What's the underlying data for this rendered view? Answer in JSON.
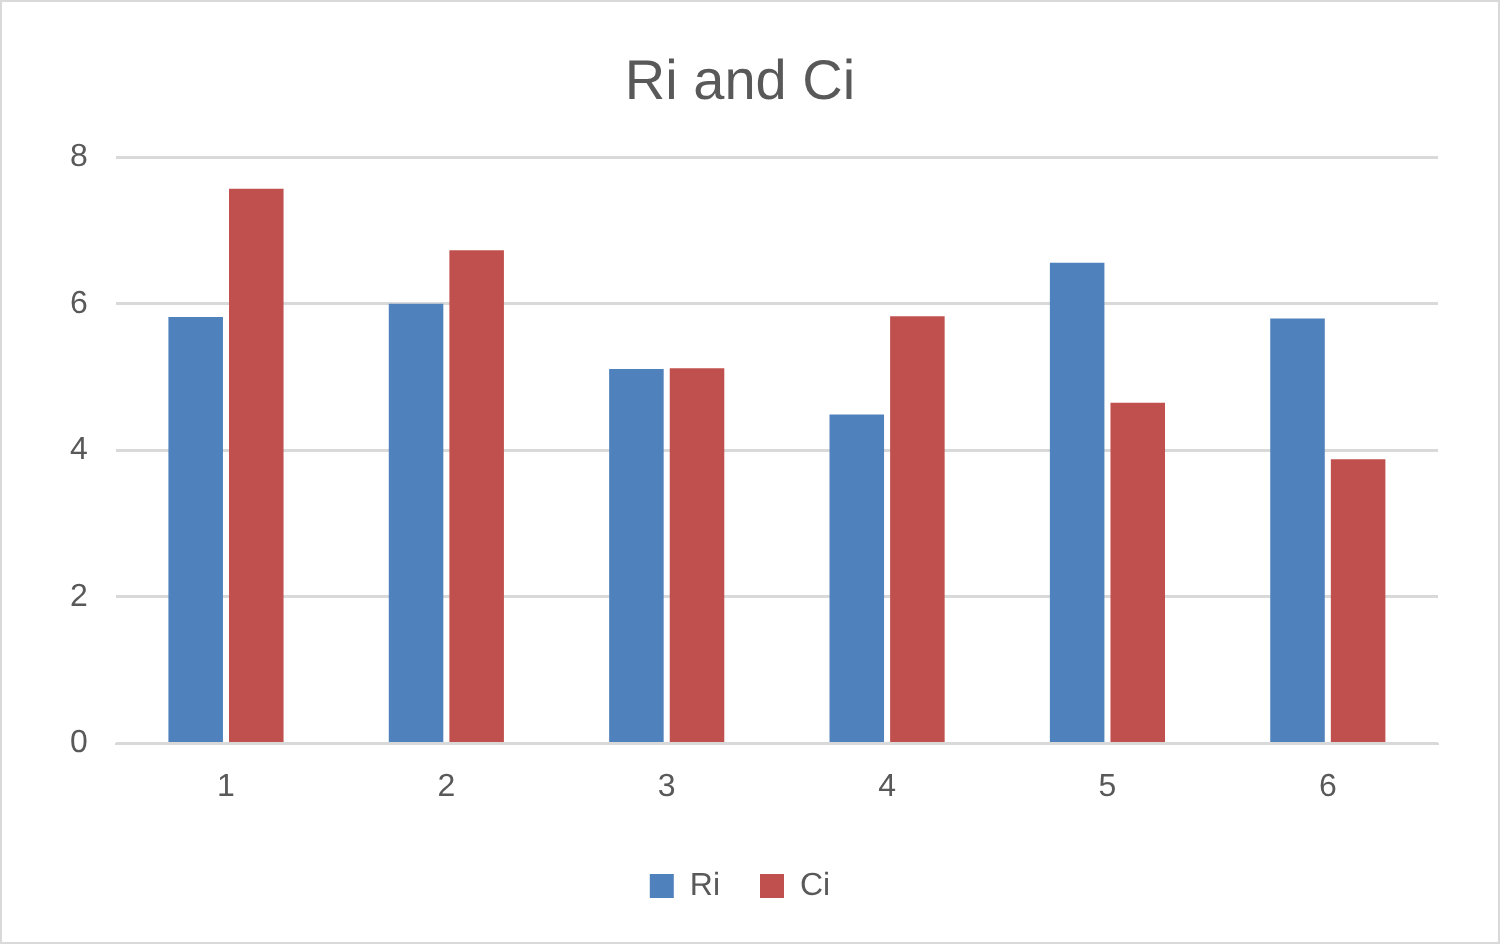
{
  "chart_data": {
    "type": "bar",
    "title": "Ri and Ci",
    "categories": [
      "1",
      "2",
      "3",
      "4",
      "5",
      "6"
    ],
    "series": [
      {
        "name": "Ri",
        "color": "#4f81bd",
        "values": [
          5.82,
          6.0,
          5.11,
          4.49,
          6.56,
          5.8
        ]
      },
      {
        "name": "Ci",
        "color": "#c0504d",
        "values": [
          7.57,
          6.73,
          5.12,
          5.83,
          4.65,
          3.88
        ]
      }
    ],
    "ylim": [
      0,
      8
    ],
    "yticks": [
      0,
      2,
      4,
      6,
      8
    ],
    "grid": "y",
    "legend": "bottom"
  }
}
